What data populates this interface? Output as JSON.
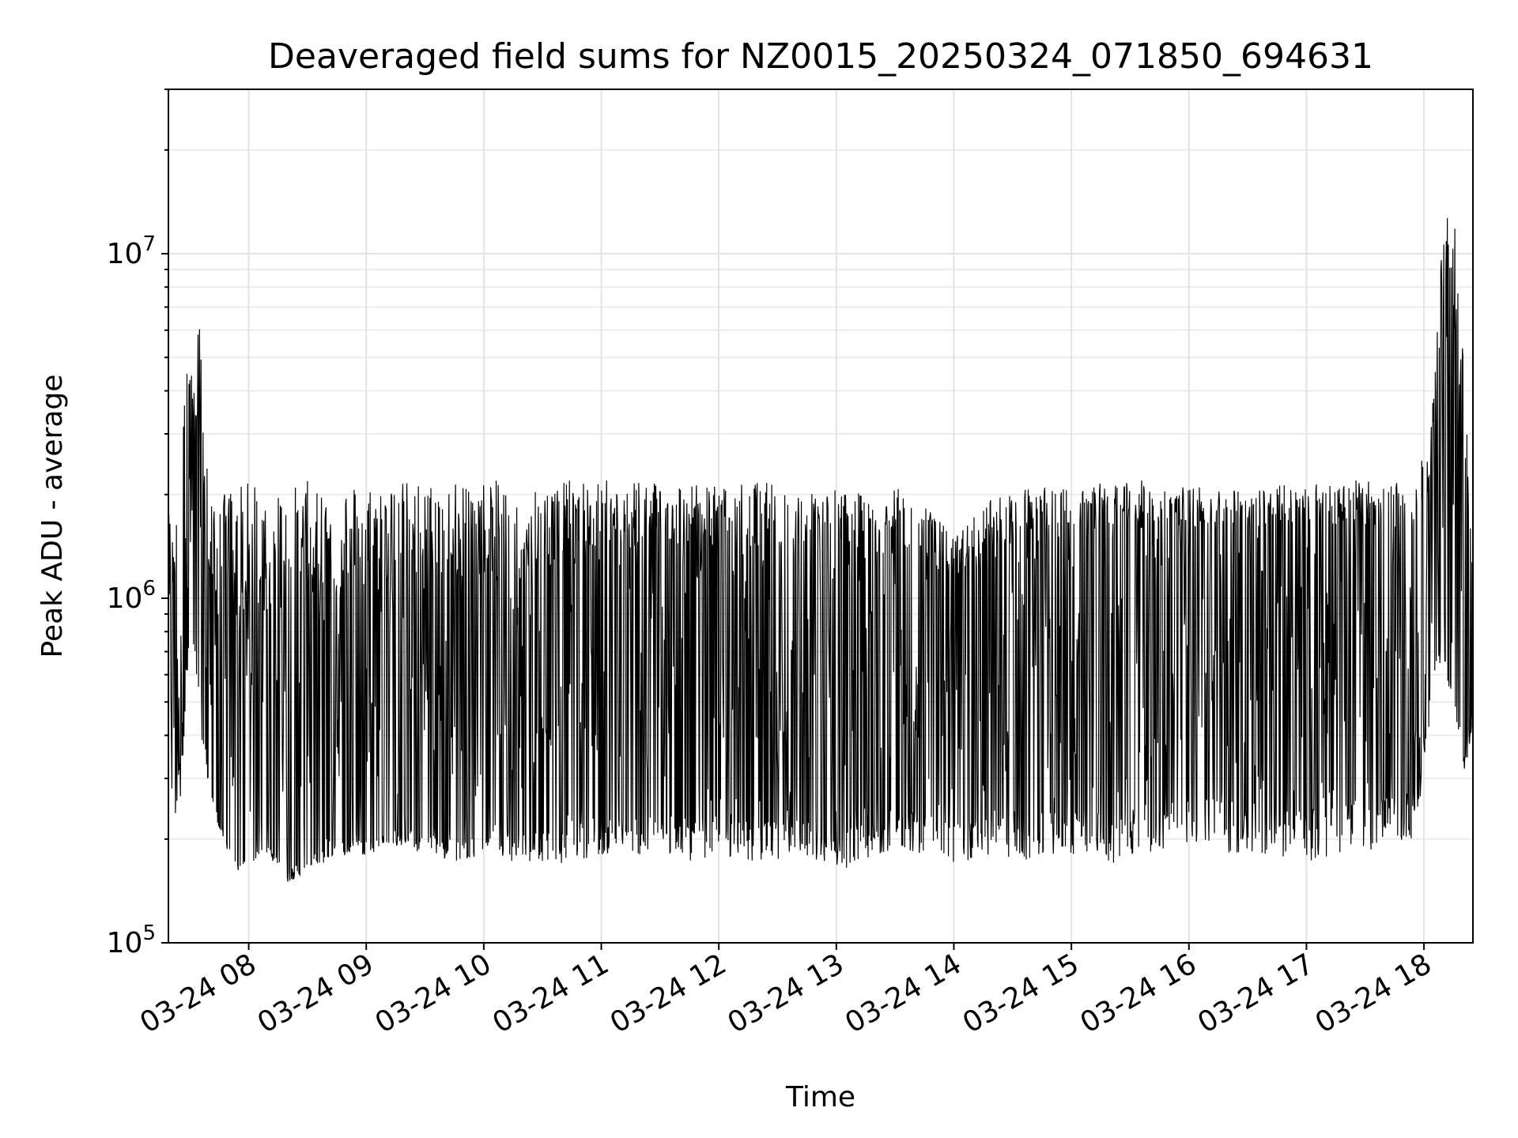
{
  "chart_data": {
    "type": "line",
    "title": "Deaveraged field sums for NZ0015_20250324_071850_694631",
    "xlabel": "Time",
    "ylabel": "Peak ADU - average",
    "yscale": "log",
    "ylim": [
      100000,
      30000000
    ],
    "xlim": [
      "2025-03-24 07:19",
      "2025-03-24 18:25"
    ],
    "grid": true,
    "legend": "none",
    "line_color": "#000000",
    "x_ticks": [
      {
        "value": "2025-03-24 08:00",
        "label": "03-24 08"
      },
      {
        "value": "2025-03-24 09:00",
        "label": "03-24 09"
      },
      {
        "value": "2025-03-24 10:00",
        "label": "03-24 10"
      },
      {
        "value": "2025-03-24 11:00",
        "label": "03-24 11"
      },
      {
        "value": "2025-03-24 12:00",
        "label": "03-24 12"
      },
      {
        "value": "2025-03-24 13:00",
        "label": "03-24 13"
      },
      {
        "value": "2025-03-24 14:00",
        "label": "03-24 14"
      },
      {
        "value": "2025-03-24 15:00",
        "label": "03-24 15"
      },
      {
        "value": "2025-03-24 16:00",
        "label": "03-24 16"
      },
      {
        "value": "2025-03-24 17:00",
        "label": "03-24 17"
      },
      {
        "value": "2025-03-24 18:00",
        "label": "03-24 18"
      }
    ],
    "y_ticks": [
      {
        "value": 100000,
        "base": "10",
        "exp": "5"
      },
      {
        "value": 1000000,
        "base": "10",
        "exp": "6"
      },
      {
        "value": 10000000,
        "base": "10",
        "exp": "7"
      }
    ],
    "series": [
      {
        "x": [
          "2025-03-24 07:19",
          "2025-03-24 07:22",
          "2025-03-24 07:25",
          "2025-03-24 07:28",
          "2025-03-24 07:31",
          "2025-03-24 07:33",
          "2025-03-24 07:35",
          "2025-03-24 07:37",
          "2025-03-24 07:39",
          "2025-03-24 07:41",
          "2025-03-24 07:44",
          "2025-03-24 07:47",
          "2025-03-24 07:50",
          "2025-03-24 07:55",
          "2025-03-24 08:00",
          "2025-03-24 08:10",
          "2025-03-24 08:20",
          "2025-03-24 08:30",
          "2025-03-24 08:40",
          "2025-03-24 08:50",
          "2025-03-24 09:00",
          "2025-03-24 09:15",
          "2025-03-24 09:30",
          "2025-03-24 09:45",
          "2025-03-24 10:00",
          "2025-03-24 10:20",
          "2025-03-24 10:40",
          "2025-03-24 11:00",
          "2025-03-24 11:20",
          "2025-03-24 11:40",
          "2025-03-24 12:00",
          "2025-03-24 12:20",
          "2025-03-24 12:40",
          "2025-03-24 13:00",
          "2025-03-24 13:15",
          "2025-03-24 13:30",
          "2025-03-24 13:45",
          "2025-03-24 14:00",
          "2025-03-24 14:20",
          "2025-03-24 14:40",
          "2025-03-24 15:00",
          "2025-03-24 15:20",
          "2025-03-24 15:40",
          "2025-03-24 16:00",
          "2025-03-24 16:20",
          "2025-03-24 16:40",
          "2025-03-24 17:00",
          "2025-03-24 17:20",
          "2025-03-24 17:40",
          "2025-03-24 17:55",
          "2025-03-24 18:00",
          "2025-03-24 18:05",
          "2025-03-24 18:10",
          "2025-03-24 18:15",
          "2025-03-24 18:20",
          "2025-03-24 18:25"
        ],
        "upper": [
          1800000,
          1400000,
          3500000,
          5500000,
          4800000,
          3500000,
          8800000,
          3000000,
          2500000,
          2000000,
          2100000,
          2000000,
          2200000,
          2100000,
          2200000,
          2200000,
          2100000,
          2200000,
          2200000,
          2200000,
          2200000,
          2200000,
          2200000,
          2200000,
          2200000,
          2200000,
          2200000,
          2200000,
          2300000,
          2200000,
          2100000,
          2200000,
          2100000,
          2100000,
          2000000,
          2100000,
          1900000,
          1500000,
          2000000,
          2100000,
          2100000,
          2200000,
          2200000,
          2100000,
          2100000,
          2100000,
          2200000,
          2200000,
          2200000,
          2100000,
          3000000,
          3800000,
          20000000,
          14000000,
          5500000,
          1200000
        ],
        "lower": [
          400000,
          200000,
          250000,
          500000,
          700000,
          600000,
          400000,
          350000,
          300000,
          250000,
          220000,
          200000,
          180000,
          160000,
          170000,
          180000,
          150000,
          160000,
          170000,
          180000,
          180000,
          190000,
          180000,
          170000,
          180000,
          170000,
          170000,
          180000,
          180000,
          170000,
          180000,
          170000,
          180000,
          160000,
          170000,
          190000,
          180000,
          170000,
          180000,
          170000,
          180000,
          170000,
          180000,
          190000,
          180000,
          180000,
          170000,
          180000,
          190000,
          200000,
          300000,
          500000,
          700000,
          400000,
          300000,
          400000
        ],
        "baseline": [
          1000000,
          900000,
          1200000,
          2000000,
          1600000,
          1300000,
          1500000,
          900000,
          450000,
          350000,
          280000,
          250000,
          230000,
          220000,
          240000,
          230000,
          240000,
          260000,
          280000,
          300000,
          320000,
          340000,
          360000,
          400000,
          450000,
          500000,
          550000,
          650000,
          700000,
          750000,
          700000,
          650000,
          600000,
          650000,
          650000,
          700000,
          750000,
          700000,
          800000,
          850000,
          900000,
          950000,
          1000000,
          1050000,
          1100000,
          1100000,
          1100000,
          1050000,
          1000000,
          1050000,
          1100000,
          1300000,
          1600000,
          1500000,
          1000000,
          800000
        ],
        "min": 130000,
        "max": 22000000
      }
    ]
  }
}
